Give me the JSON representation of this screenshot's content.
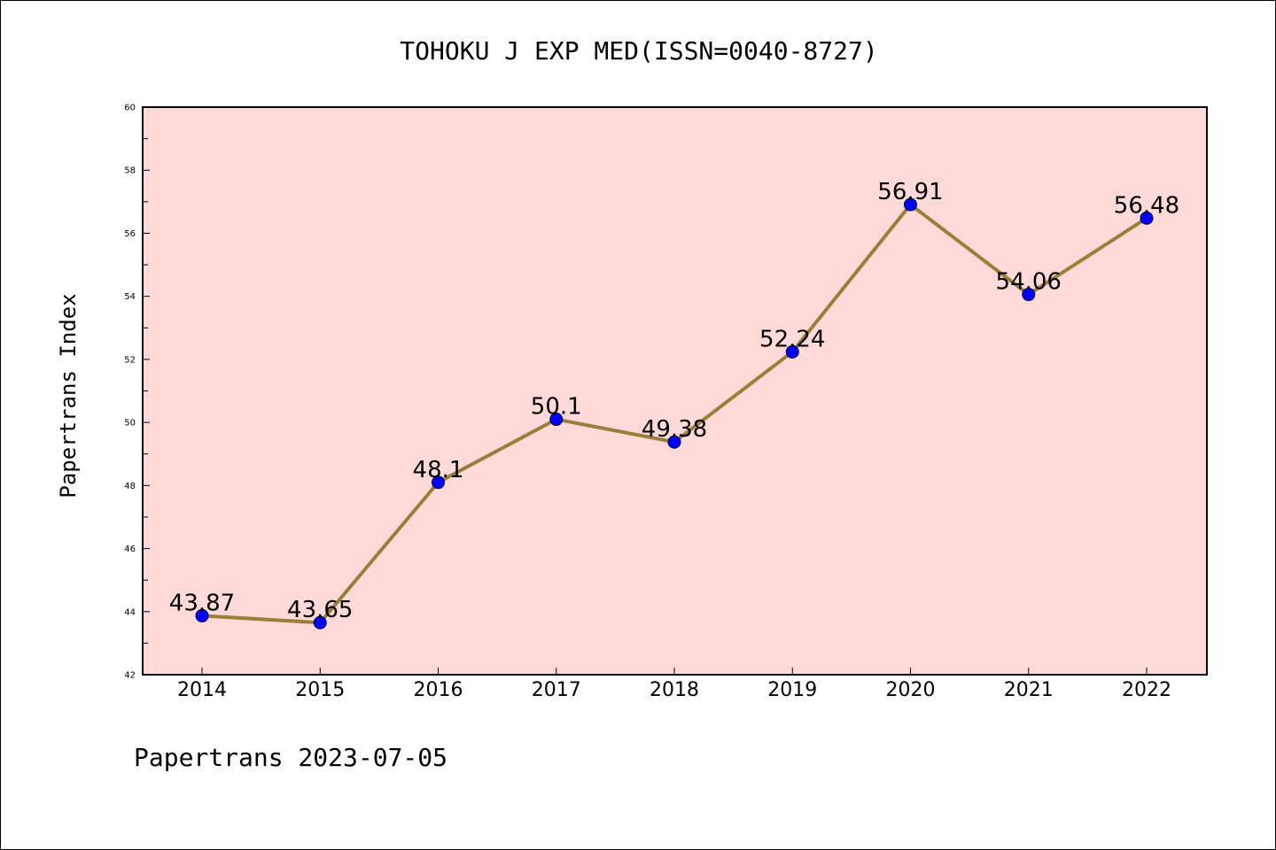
{
  "chart_data": {
    "type": "line",
    "title": "TOHOKU J EXP MED(ISSN=0040-8727)",
    "xlabel": "",
    "ylabel": "Papertrans Index",
    "categories": [
      "2014",
      "2015",
      "2016",
      "2017",
      "2018",
      "2019",
      "2020",
      "2021",
      "2022"
    ],
    "series": [
      {
        "values": [
          43.87,
          43.65,
          48.1,
          50.1,
          49.38,
          52.24,
          56.91,
          54.06,
          56.48
        ],
        "labels": [
          "43.87",
          "43.65",
          "48.1",
          "50.1",
          "49.38",
          "52.24",
          "56.91",
          "54.06",
          "56.48"
        ]
      }
    ],
    "ylim": [
      42,
      60
    ],
    "yticks": [
      "42",
      "44",
      "46",
      "48",
      "50",
      "52",
      "54",
      "56",
      "58",
      "60"
    ],
    "grid": false,
    "legend": "none",
    "colors": {
      "plot_background": "#FFDAD8",
      "line": "#9A7F3A",
      "marker": "#0000FF"
    }
  },
  "footer": {
    "text": "Papertrans 2023-07-05"
  }
}
